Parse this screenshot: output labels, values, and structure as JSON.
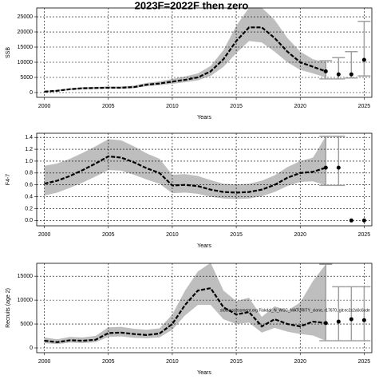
{
  "chart_data": [
    {
      "type": "line",
      "title": "2023F=2022F then zero",
      "x_label": "Years",
      "y_label": "SSB",
      "x": [
        2000,
        2001,
        2002,
        2003,
        2004,
        2005,
        2006,
        2007,
        2008,
        2009,
        2010,
        2011,
        2012,
        2013,
        2014,
        2015,
        2016,
        2017,
        2018,
        2019,
        2020,
        2021,
        2022
      ],
      "values": [
        300,
        600,
        1100,
        1400,
        1500,
        1600,
        1600,
        1800,
        2600,
        3000,
        3600,
        4200,
        5000,
        7000,
        11000,
        17000,
        21500,
        21500,
        18000,
        13500,
        10000,
        8500,
        7000
      ],
      "lower": [
        200,
        450,
        850,
        1100,
        1200,
        1300,
        1300,
        1450,
        2100,
        2400,
        2900,
        3400,
        4000,
        5500,
        8500,
        13000,
        17000,
        16500,
        13500,
        10000,
        7500,
        6300,
        5000
      ],
      "upper": [
        450,
        800,
        1400,
        1800,
        1900,
        2000,
        2000,
        2300,
        3200,
        3700,
        4500,
        5300,
        6300,
        8800,
        14000,
        22000,
        28000,
        28000,
        24000,
        18000,
        13500,
        11000,
        10000
      ],
      "proj_x": [
        2022,
        2023,
        2024,
        2025
      ],
      "proj_values": [
        7000,
        6000,
        6000,
        10800
      ],
      "proj_lower": [
        4500,
        4500,
        4800,
        5500
      ],
      "proj_upper": [
        10500,
        11500,
        13500,
        23500
      ],
      "color": "#000000",
      "band_color": "#bebebe",
      "bar_color": "#a0a0a0",
      "xlim": [
        1999.4,
        2025.6
      ],
      "ylim": [
        -1580,
        27900
      ],
      "xticks": [
        2000,
        2005,
        2010,
        2015,
        2020,
        2025
      ],
      "yticks": [
        0,
        5000,
        10000,
        15000,
        20000,
        25000
      ],
      "grid": true
    },
    {
      "type": "line",
      "x_label": "Years",
      "y_label": "F4-7",
      "x": [
        2000,
        2001,
        2002,
        2003,
        2004,
        2005,
        2006,
        2007,
        2008,
        2009,
        2010,
        2011,
        2012,
        2013,
        2014,
        2015,
        2016,
        2017,
        2018,
        2019,
        2020,
        2021,
        2022
      ],
      "values": [
        0.62,
        0.67,
        0.75,
        0.85,
        0.96,
        1.08,
        1.06,
        0.98,
        0.88,
        0.8,
        0.59,
        0.6,
        0.58,
        0.52,
        0.48,
        0.47,
        0.48,
        0.52,
        0.6,
        0.72,
        0.8,
        0.82,
        0.89
      ],
      "lower": [
        0.42,
        0.47,
        0.55,
        0.64,
        0.74,
        0.85,
        0.84,
        0.77,
        0.69,
        0.62,
        0.46,
        0.47,
        0.45,
        0.4,
        0.37,
        0.36,
        0.37,
        0.41,
        0.48,
        0.58,
        0.65,
        0.66,
        0.59
      ],
      "upper": [
        0.92,
        0.96,
        1.04,
        1.14,
        1.25,
        1.37,
        1.35,
        1.25,
        1.13,
        1.04,
        0.77,
        0.78,
        0.75,
        0.68,
        0.62,
        0.61,
        0.62,
        0.67,
        0.76,
        0.9,
        1.0,
        1.06,
        1.42
      ],
      "proj_x": [
        2022,
        2023,
        2024,
        2025
      ],
      "proj_values": [
        0.89,
        0.89,
        0,
        0
      ],
      "proj_lower": [
        0.59,
        0.59,
        null,
        null
      ],
      "proj_upper": [
        1.42,
        1.42,
        null,
        null
      ],
      "color": "#000000",
      "band_color": "#bebebe",
      "bar_color": "#a0a0a0",
      "xlim": [
        1999.4,
        2025.6
      ],
      "ylim": [
        -0.09,
        1.47
      ],
      "xticks": [
        2000,
        2005,
        2010,
        2015,
        2020,
        2025
      ],
      "yticks": [
        {
          "value": 0,
          "label": "0.0"
        },
        {
          "value": 0.2,
          "label": "0.2"
        },
        {
          "value": 0.4,
          "label": "0.4"
        },
        {
          "value": 0.6,
          "label": "0.6"
        },
        {
          "value": 0.8,
          "label": "0.8"
        },
        {
          "value": 1,
          "label": "1.0"
        },
        {
          "value": 1.2,
          "label": "1.2"
        },
        {
          "value": 1.4,
          "label": "1.4"
        }
      ],
      "grid": true
    },
    {
      "type": "line",
      "x_label": "Years",
      "y_label": "Recruits (age 2)",
      "annotation": "stockassessment.org Fiskdal_N_WSC_MATURITY_clone, r17670, git:ec2c2a0c6cde",
      "x": [
        2000,
        2001,
        2002,
        2003,
        2004,
        2005,
        2006,
        2007,
        2008,
        2009,
        2010,
        2011,
        2012,
        2013,
        2014,
        2015,
        2016,
        2017,
        2018,
        2019,
        2020,
        2021,
        2022
      ],
      "values": [
        1500,
        1200,
        1600,
        1500,
        1700,
        3100,
        3200,
        2900,
        2700,
        3000,
        5000,
        9000,
        12000,
        12500,
        8500,
        7000,
        7500,
        4500,
        6000,
        5000,
        4500,
        5500,
        5200
      ],
      "lower": [
        1000,
        800,
        1100,
        1000,
        1200,
        2300,
        2400,
        2100,
        2000,
        2200,
        3800,
        6800,
        9000,
        9000,
        6000,
        5000,
        5300,
        3200,
        4200,
        3400,
        2900,
        2600,
        1500
      ],
      "upper": [
        2200,
        1800,
        2300,
        2200,
        2500,
        4300,
        4400,
        4000,
        3800,
        4100,
        7000,
        12000,
        16000,
        17800,
        12000,
        9800,
        10500,
        6500,
        8700,
        7800,
        9500,
        14000,
        17500
      ],
      "proj_x": [
        2022,
        2023,
        2024,
        2025
      ],
      "proj_values": [
        5200,
        5500,
        6000,
        5800
      ],
      "proj_lower": [
        1500,
        1500,
        1500,
        1500
      ],
      "proj_upper": [
        17500,
        12800,
        12800,
        12800
      ],
      "color": "#000000",
      "band_color": "#bebebe",
      "bar_color": "#a0a0a0",
      "xlim": [
        1999.4,
        2025.6
      ],
      "ylim": [
        -1000,
        17700
      ],
      "xticks": [
        2000,
        2005,
        2010,
        2015,
        2020,
        2025
      ],
      "yticks": [
        0,
        5000,
        10000,
        15000
      ],
      "grid": true
    }
  ]
}
